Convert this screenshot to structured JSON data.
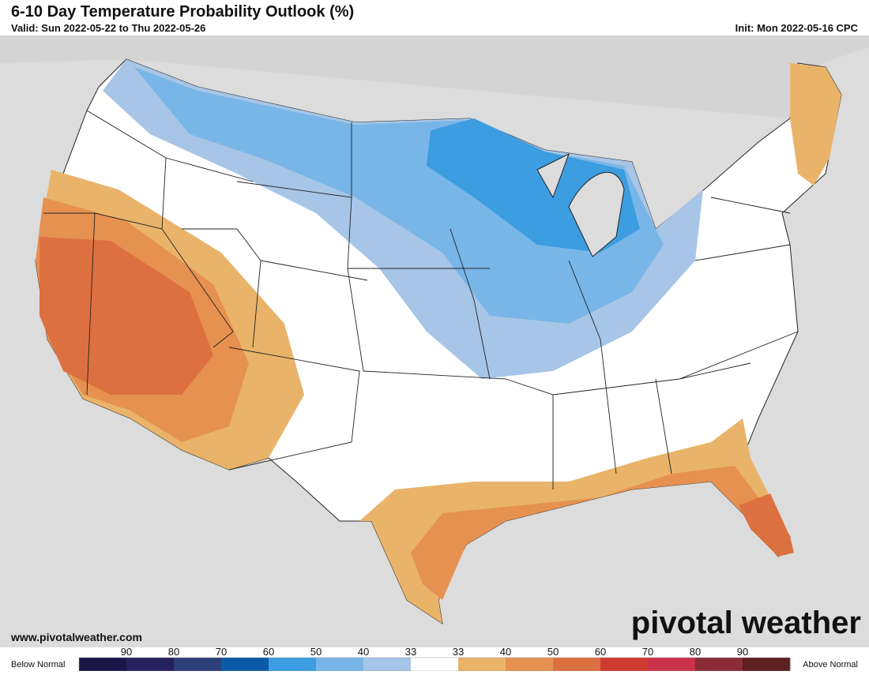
{
  "header": {
    "title": "6-10 Day Temperature Probability Outlook (%)",
    "valid": "Valid: Sun 2022-05-22 to Thu 2022-05-26",
    "init": "Init: Mon 2022-05-16 CPC"
  },
  "footer": {
    "website": "www.pivotalweather.com",
    "brand": "pivotal weather"
  },
  "legend": {
    "below_label": "Below Normal",
    "above_label": "Above Normal",
    "below_ticks": [
      90,
      80,
      70,
      60,
      50,
      40,
      33
    ],
    "above_ticks": [
      33,
      40,
      50,
      60,
      70,
      80,
      90
    ],
    "colors": [
      "#1b1646",
      "#24215e",
      "#2d3f78",
      "#0b5aa5",
      "#3c9de0",
      "#79b6e8",
      "#a7c5e6",
      "#ffffff",
      "#e9b46a",
      "#e69150",
      "#dd7040",
      "#cf3b2f",
      "#c93249",
      "#8a2b38",
      "#5e2020"
    ]
  }
}
